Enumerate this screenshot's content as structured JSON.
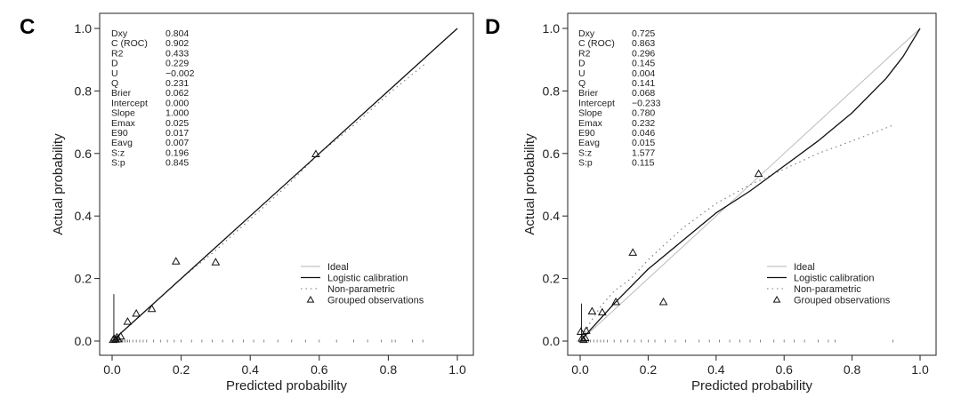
{
  "chart_data": [
    {
      "type": "scatter",
      "panel": "C",
      "xlabel": "Predicted probability",
      "ylabel": "Actual probability",
      "xlim": [
        0,
        1
      ],
      "ylim": [
        0,
        1
      ],
      "ticks": [
        0.0,
        0.2,
        0.4,
        0.6,
        0.8,
        1.0
      ],
      "tick_labels": [
        "0.0",
        "0.2",
        "0.4",
        "0.6",
        "0.8",
        "1.0"
      ],
      "stats": [
        {
          "label": "Dxy",
          "value": "0.804"
        },
        {
          "label": "C (ROC)",
          "value": "0.902"
        },
        {
          "label": "R2",
          "value": "0.433"
        },
        {
          "label": "D",
          "value": "0.229"
        },
        {
          "label": "U",
          "value": "−0.002"
        },
        {
          "label": "Q",
          "value": "0.231"
        },
        {
          "label": "Brier",
          "value": "0.062"
        },
        {
          "label": "Intercept",
          "value": "0.000"
        },
        {
          "label": "Slope",
          "value": "1.000"
        },
        {
          "label": "Emax",
          "value": "0.025"
        },
        {
          "label": "E90",
          "value": "0.017"
        },
        {
          "label": "Eavg",
          "value": "0.007"
        },
        {
          "label": "S:z",
          "value": "0.196"
        },
        {
          "label": "S:p",
          "value": "0.845"
        }
      ],
      "legend": [
        "Ideal",
        "Logistic calibration",
        "Non-parametric",
        "Grouped observations"
      ],
      "ideal": [
        [
          0,
          0
        ],
        [
          1,
          1
        ]
      ],
      "logistic": [
        [
          0,
          0
        ],
        [
          0.2,
          0.2
        ],
        [
          0.4,
          0.4
        ],
        [
          0.6,
          0.6
        ],
        [
          0.8,
          0.8
        ],
        [
          1.0,
          1.0
        ]
      ],
      "nonparametric": [
        [
          0.0,
          0.0
        ],
        [
          0.05,
          0.05
        ],
        [
          0.1,
          0.1
        ],
        [
          0.2,
          0.2
        ],
        [
          0.3,
          0.29
        ],
        [
          0.4,
          0.39
        ],
        [
          0.5,
          0.49
        ],
        [
          0.6,
          0.6
        ],
        [
          0.7,
          0.69
        ],
        [
          0.8,
          0.79
        ],
        [
          0.91,
          0.89
        ]
      ],
      "grouped": [
        [
          0.003,
          0.004
        ],
        [
          0.006,
          0.008
        ],
        [
          0.01,
          0.005
        ],
        [
          0.014,
          0.012
        ],
        [
          0.018,
          0.006
        ],
        [
          0.025,
          0.015
        ],
        [
          0.045,
          0.062
        ],
        [
          0.07,
          0.088
        ],
        [
          0.115,
          0.103
        ],
        [
          0.185,
          0.255
        ],
        [
          0.3,
          0.252
        ],
        [
          0.59,
          0.598
        ]
      ],
      "rug_x": [
        0.0,
        0.005,
        0.01,
        0.015,
        0.02,
        0.025,
        0.03,
        0.035,
        0.04,
        0.045,
        0.05,
        0.06,
        0.07,
        0.08,
        0.09,
        0.1,
        0.12,
        0.14,
        0.16,
        0.18,
        0.2,
        0.23,
        0.26,
        0.29,
        0.32,
        0.35,
        0.38,
        0.41,
        0.44,
        0.48,
        0.52,
        0.56,
        0.6,
        0.65,
        0.7,
        0.74,
        0.78,
        0.81,
        0.82,
        0.87,
        0.9
      ],
      "spike": {
        "x": 0.005,
        "height": 0.15
      }
    },
    {
      "type": "scatter",
      "panel": "D",
      "xlabel": "Predicted probability",
      "ylabel": "Actual probability",
      "xlim": [
        0,
        1
      ],
      "ylim": [
        0,
        1
      ],
      "ticks": [
        0.0,
        0.2,
        0.4,
        0.6,
        0.8,
        1.0
      ],
      "tick_labels": [
        "0.0",
        "0.2",
        "0.4",
        "0.6",
        "0.8",
        "1.0"
      ],
      "stats": [
        {
          "label": "Dxy",
          "value": "0.725"
        },
        {
          "label": "C (ROC)",
          "value": "0.863"
        },
        {
          "label": "R2",
          "value": "0.296"
        },
        {
          "label": "D",
          "value": "0.145"
        },
        {
          "label": "U",
          "value": "0.004"
        },
        {
          "label": "Q",
          "value": "0.141"
        },
        {
          "label": "Brier",
          "value": "0.068"
        },
        {
          "label": "Intercept",
          "value": "−0.233"
        },
        {
          "label": "Slope",
          "value": "0.780"
        },
        {
          "label": "Emax",
          "value": "0.232"
        },
        {
          "label": "E90",
          "value": "0.046"
        },
        {
          "label": "Eavg",
          "value": "0.015"
        },
        {
          "label": "S:z",
          "value": "1.577"
        },
        {
          "label": "S:p",
          "value": "0.115"
        }
      ],
      "legend": [
        "Ideal",
        "Logistic calibration",
        "Non-parametric",
        "Grouped observations"
      ],
      "ideal": [
        [
          0,
          0
        ],
        [
          1,
          1
        ]
      ],
      "logistic": [
        [
          0.0,
          0.0
        ],
        [
          0.05,
          0.06
        ],
        [
          0.1,
          0.12
        ],
        [
          0.2,
          0.23
        ],
        [
          0.3,
          0.32
        ],
        [
          0.4,
          0.41
        ],
        [
          0.5,
          0.48
        ],
        [
          0.6,
          0.56
        ],
        [
          0.7,
          0.64
        ],
        [
          0.8,
          0.73
        ],
        [
          0.9,
          0.84
        ],
        [
          0.95,
          0.91
        ],
        [
          1.0,
          1.0
        ]
      ],
      "nonparametric": [
        [
          0.0,
          0.0
        ],
        [
          0.03,
          0.06
        ],
        [
          0.06,
          0.11
        ],
        [
          0.1,
          0.16
        ],
        [
          0.15,
          0.2
        ],
        [
          0.2,
          0.26
        ],
        [
          0.3,
          0.36
        ],
        [
          0.4,
          0.44
        ],
        [
          0.5,
          0.5
        ],
        [
          0.6,
          0.55
        ],
        [
          0.7,
          0.6
        ],
        [
          0.8,
          0.64
        ],
        [
          0.92,
          0.69
        ]
      ],
      "grouped": [
        [
          0.002,
          0.03
        ],
        [
          0.005,
          0.008
        ],
        [
          0.01,
          0.004
        ],
        [
          0.015,
          0.01
        ],
        [
          0.018,
          0.033
        ],
        [
          0.035,
          0.095
        ],
        [
          0.065,
          0.092
        ],
        [
          0.105,
          0.125
        ],
        [
          0.155,
          0.283
        ],
        [
          0.245,
          0.125
        ],
        [
          0.525,
          0.535
        ]
      ],
      "rug_x": [
        0.0,
        0.005,
        0.01,
        0.015,
        0.02,
        0.025,
        0.03,
        0.04,
        0.05,
        0.06,
        0.07,
        0.08,
        0.1,
        0.12,
        0.14,
        0.16,
        0.18,
        0.2,
        0.22,
        0.25,
        0.28,
        0.31,
        0.35,
        0.38,
        0.41,
        0.44,
        0.47,
        0.5,
        0.53,
        0.57,
        0.6,
        0.63,
        0.66,
        0.7,
        0.73,
        0.75,
        0.92
      ],
      "spike": {
        "x": 0.004,
        "height": 0.12
      }
    }
  ]
}
